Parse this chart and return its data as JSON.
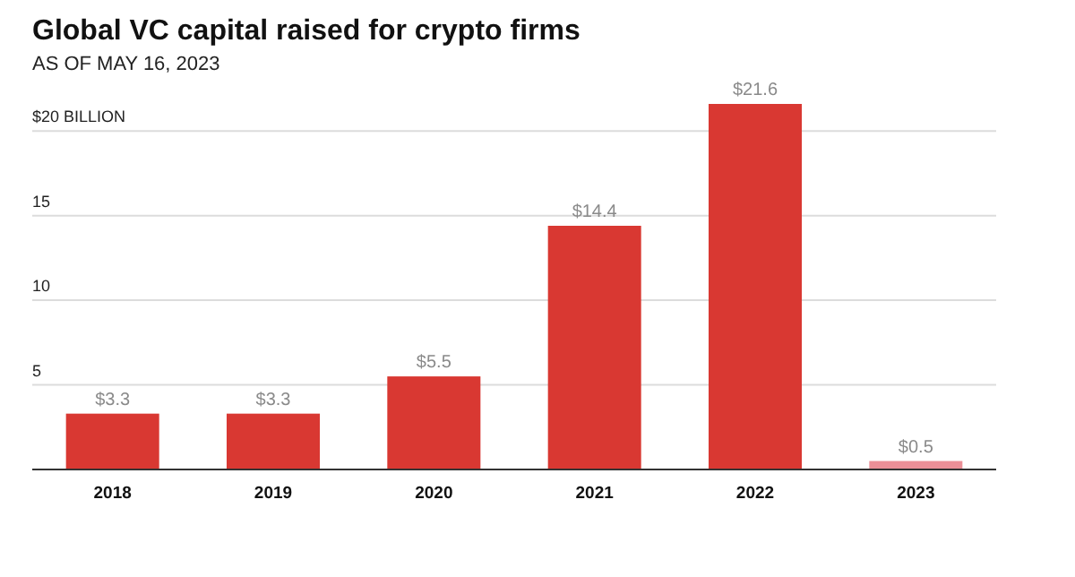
{
  "chart_data": {
    "type": "bar",
    "title": "Global VC capital raised for crypto firms",
    "subtitle": "AS OF MAY 16, 2023",
    "categories": [
      "2018",
      "2019",
      "2020",
      "2021",
      "2022",
      "2023"
    ],
    "values": [
      3.3,
      3.3,
      5.5,
      14.4,
      21.6,
      0.5
    ],
    "colors": [
      "#d93832",
      "#d93832",
      "#d93832",
      "#d93832",
      "#d93832",
      "#eb8f97"
    ],
    "value_labels": [
      "$3.3",
      "$3.3",
      "$5.5",
      "$14.4",
      "$21.6",
      "$0.5"
    ],
    "ylim": [
      0,
      21.6
    ],
    "yticks": [
      5,
      10,
      15,
      {
        "value": 20,
        "label": "$20 BILLION"
      }
    ],
    "grid": "y"
  }
}
